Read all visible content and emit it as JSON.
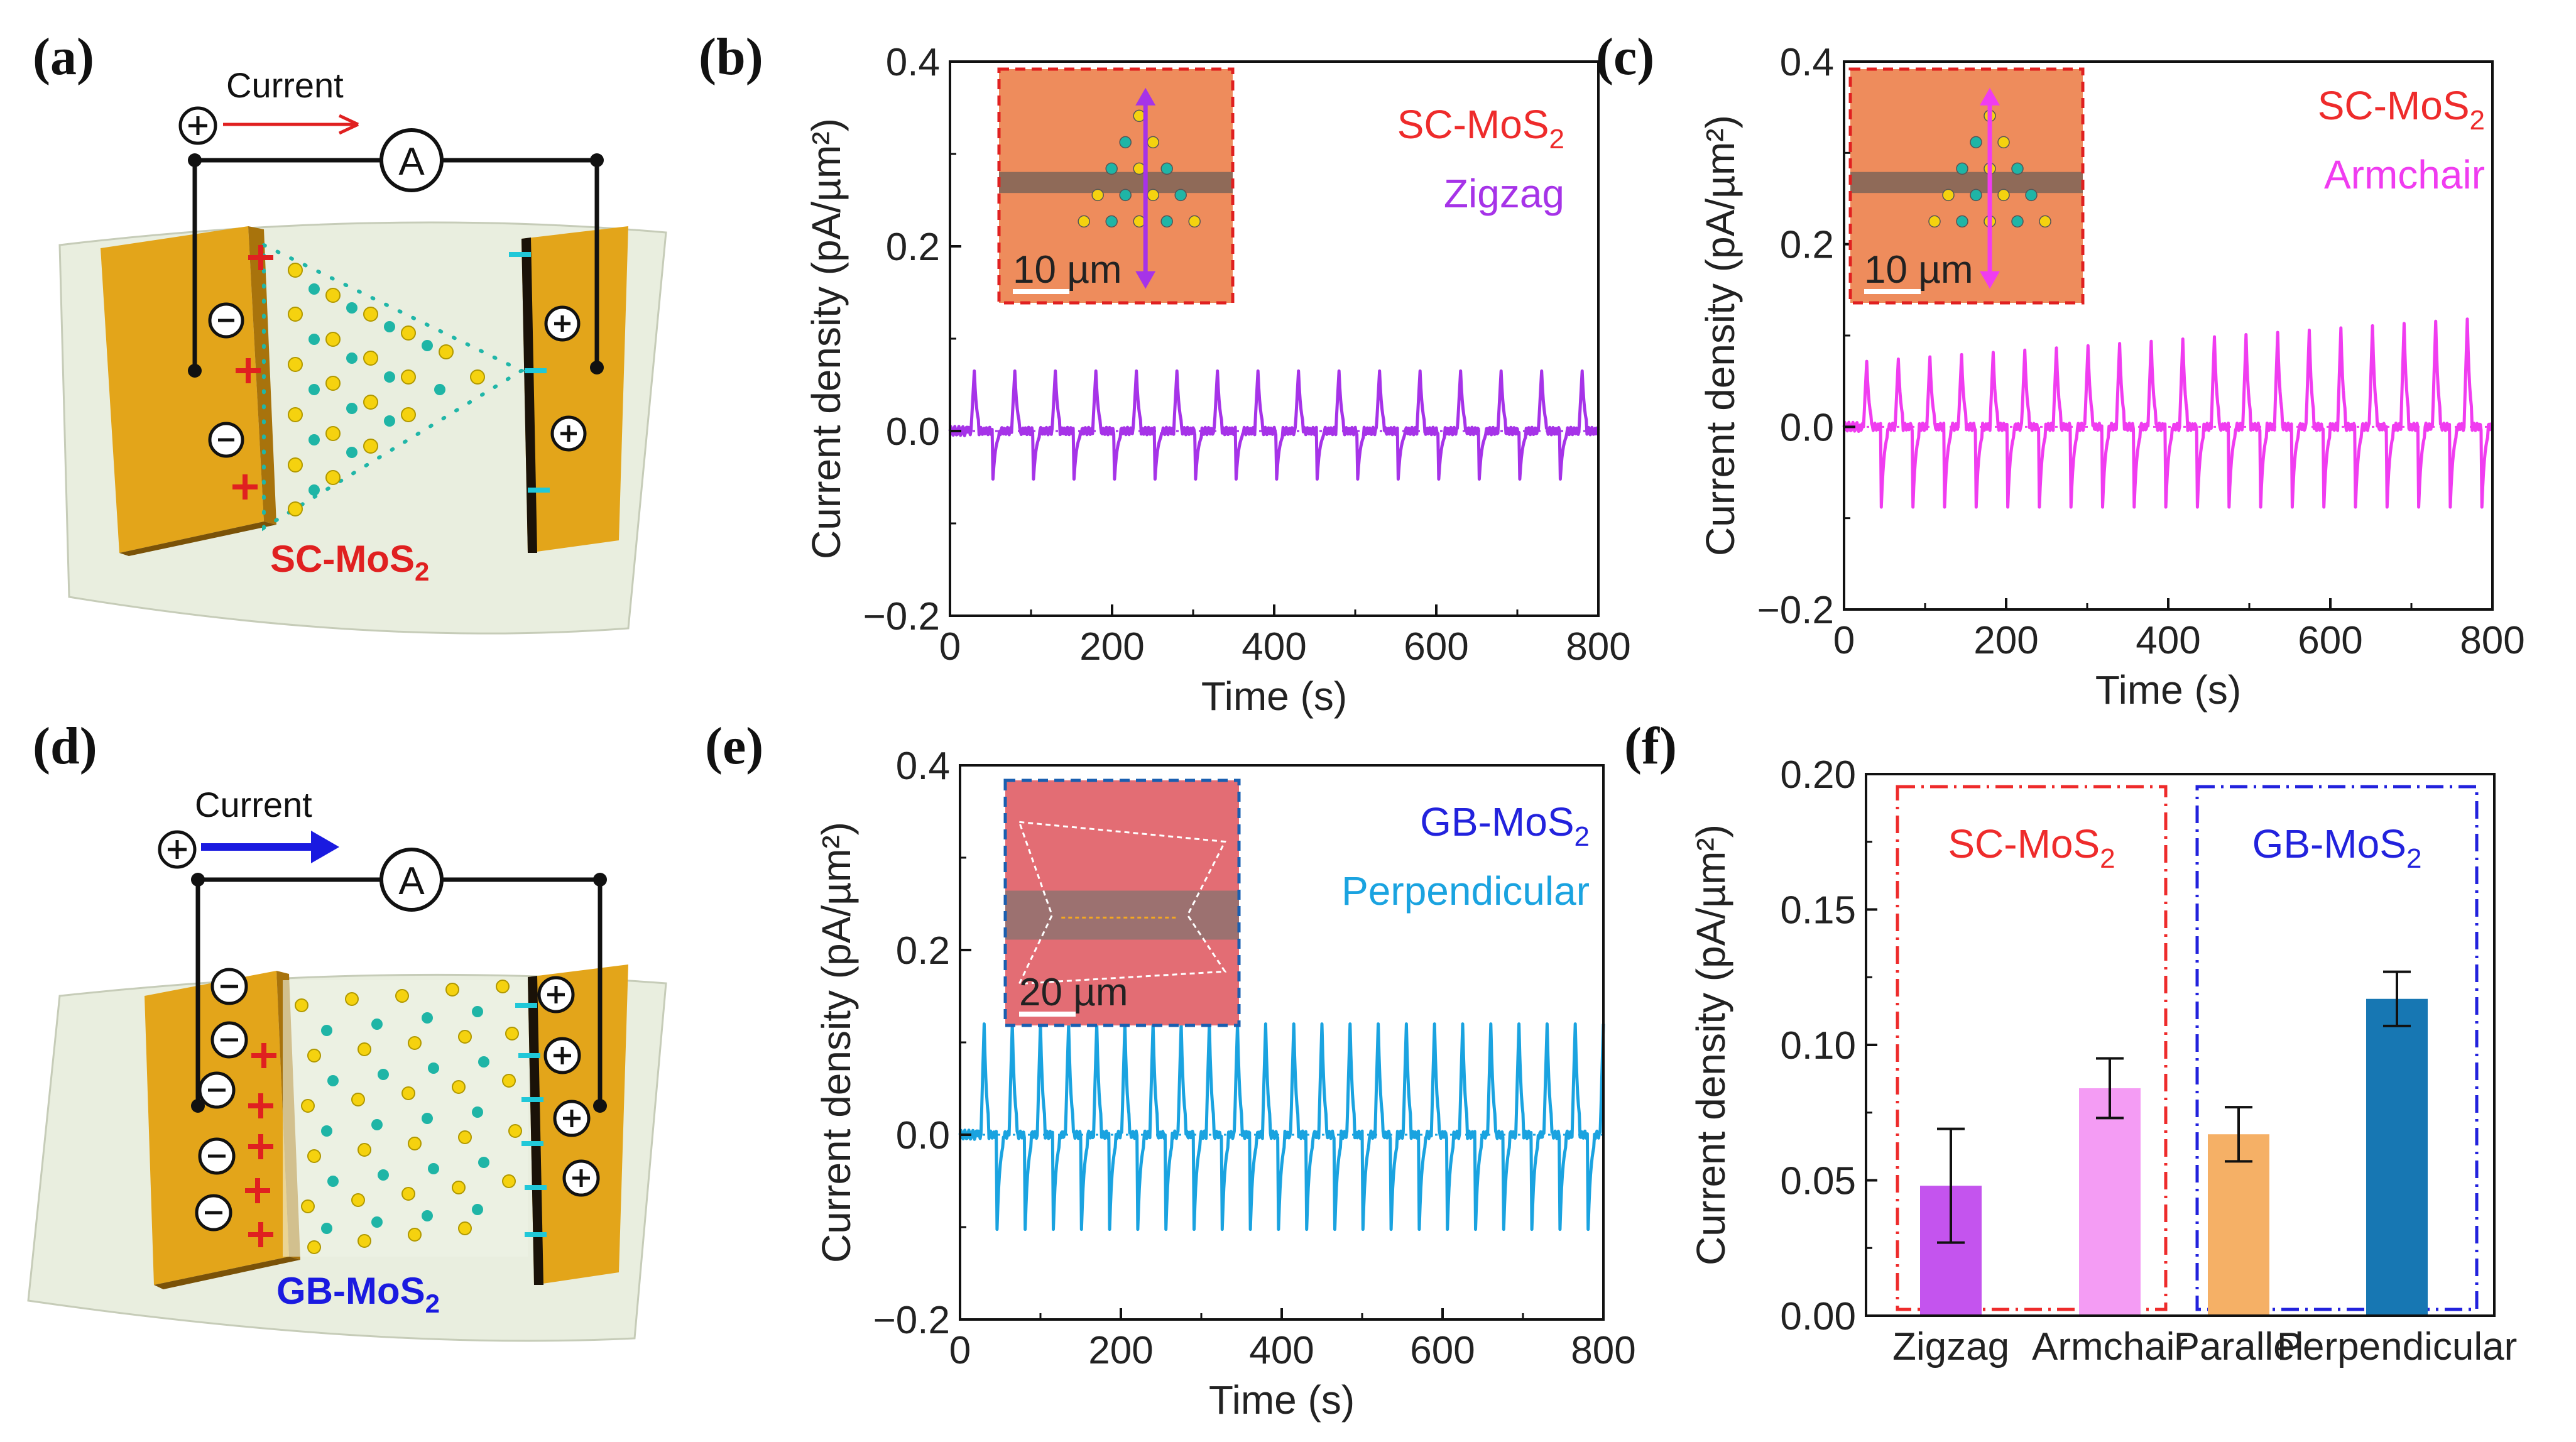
{
  "panel_labels": [
    "(a)",
    "(b)",
    "(c)",
    "(d)",
    "(e)",
    "(f)"
  ],
  "schematic_a": {
    "current_label": "Current",
    "meter_label": "A",
    "material_label": "SC-MoS",
    "material_sub": "2"
  },
  "schematic_d": {
    "current_label": "Current",
    "meter_label": "A",
    "material_label": "GB-MoS",
    "material_sub": "2"
  },
  "colors": {
    "zigzag": "#a633e8",
    "armchair": "#f03cf0",
    "perpendicular": "#1aa3e0",
    "bar_zigzag": "#c454ee",
    "bar_armchair": "#f49cf4",
    "bar_parallel": "#f5b066",
    "bar_perpendicular": "#1777b3",
    "gold": "#e2a417",
    "substrate": "#e9eedf"
  },
  "chart_data": [
    {
      "id": "b",
      "type": "line",
      "xlabel": "Time (s)",
      "ylabel": "Current density (pA/µm²)",
      "xlim": [
        0,
        800
      ],
      "ylim": [
        -0.2,
        0.4
      ],
      "xticks": [
        "0",
        "200",
        "400",
        "600",
        "800"
      ],
      "yticks": [
        "−0.2",
        "0.0",
        "0.2",
        "0.4"
      ],
      "legend": [
        {
          "text": "SC-MoS",
          "sub": "2",
          "color": "#ee2b2b"
        },
        {
          "text": "Zigzag",
          "sub": "",
          "color": "#a633e8"
        }
      ],
      "inset_scale": "10 µm",
      "series": [
        {
          "name": "Zigzag",
          "color": "#a633e8",
          "period_s": 50,
          "first_peak_s": 30,
          "peak": 0.065,
          "trough": -0.06,
          "baseline": 0.0
        }
      ]
    },
    {
      "id": "c",
      "type": "line",
      "xlabel": "Time (s)",
      "ylabel": "Current density (pA/µm²)",
      "xlim": [
        0,
        800
      ],
      "ylim": [
        -0.2,
        0.4
      ],
      "xticks": [
        "0",
        "200",
        "400",
        "600",
        "800"
      ],
      "yticks": [
        "−0.2",
        "0.0",
        "0.2",
        "0.4"
      ],
      "legend": [
        {
          "text": "SC-MoS",
          "sub": "2",
          "color": "#ee2b2b"
        },
        {
          "text": "Armchair",
          "sub": "",
          "color": "#f03cf0"
        }
      ],
      "inset_scale": "10 µm",
      "series": [
        {
          "name": "Armchair",
          "color": "#f03cf0",
          "period_s": 39,
          "first_peak_s": 28,
          "peak": 0.07,
          "peak_end": 0.12,
          "trough": -0.1,
          "baseline": 0.0
        }
      ]
    },
    {
      "id": "e",
      "type": "line",
      "xlabel": "Time (s)",
      "ylabel": "Current density (pA/µm²)",
      "xlim": [
        0,
        800
      ],
      "ylim": [
        -0.2,
        0.4
      ],
      "xticks": [
        "0",
        "200",
        "400",
        "600",
        "800"
      ],
      "yticks": [
        "−0.2",
        "0.0",
        "0.2",
        "0.4"
      ],
      "legend": [
        {
          "text": "GB-MoS",
          "sub": "2",
          "color": "#2222dd"
        },
        {
          "text": "Perpendicular",
          "sub": "",
          "color": "#1aa3e0"
        }
      ],
      "inset_scale": "20 µm",
      "series": [
        {
          "name": "Perpendicular",
          "color": "#1aa3e0",
          "period_s": 35,
          "first_peak_s": 30,
          "peak": 0.12,
          "trough": -0.11,
          "baseline": 0.0
        }
      ]
    },
    {
      "id": "f",
      "type": "bar",
      "ylabel": "Current density (pA/µm²)",
      "ylim": [
        0,
        0.2
      ],
      "yticks": [
        "0.00",
        "0.05",
        "0.10",
        "0.15",
        "0.20"
      ],
      "categories": [
        "Zigzag",
        "Armchair",
        "Parallel",
        "Perpendicular"
      ],
      "values": [
        0.048,
        0.084,
        0.067,
        0.117
      ],
      "errors": [
        0.021,
        0.011,
        0.01,
        0.01
      ],
      "bar_colors": [
        "#c454ee",
        "#f49cf4",
        "#f5b066",
        "#1777b3"
      ],
      "groups": [
        {
          "label": "SC-MoS",
          "sub": "2",
          "color": "#ee2b2b",
          "members": [
            0,
            1
          ]
        },
        {
          "label": "GB-MoS",
          "sub": "2",
          "color": "#2222dd",
          "members": [
            2,
            3
          ]
        }
      ]
    }
  ]
}
